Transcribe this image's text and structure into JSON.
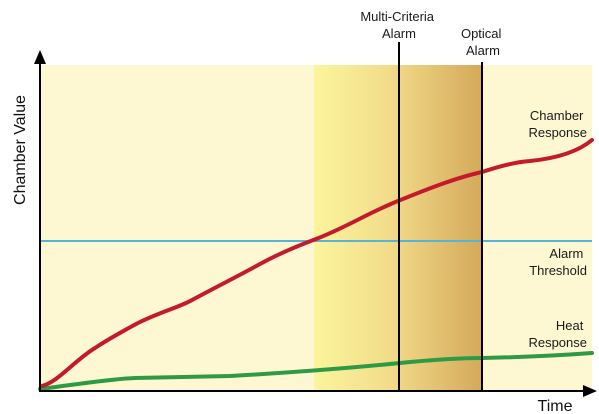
{
  "axes": {
    "y_label": "Chamber Value",
    "x_label": "Time"
  },
  "markers": {
    "multi_criteria": [
      "Multi-Criteria",
      "Alarm"
    ],
    "optical": [
      "Optical",
      "Alarm"
    ]
  },
  "series": {
    "chamber": [
      "Chamber",
      "Response"
    ],
    "threshold": [
      "Alarm",
      "Threshold"
    ],
    "heat": [
      "Heat",
      "Response"
    ]
  },
  "colors": {
    "plot_background": "#fdf8d2",
    "window_start": "#fbf59c",
    "window_mid": "#f2dc8a",
    "window_end": "#d4a95a",
    "chamber_line": "#c41a2e",
    "threshold_line": "#56b4d8",
    "heat_line": "#2e9a45",
    "axis": "#000000"
  }
}
